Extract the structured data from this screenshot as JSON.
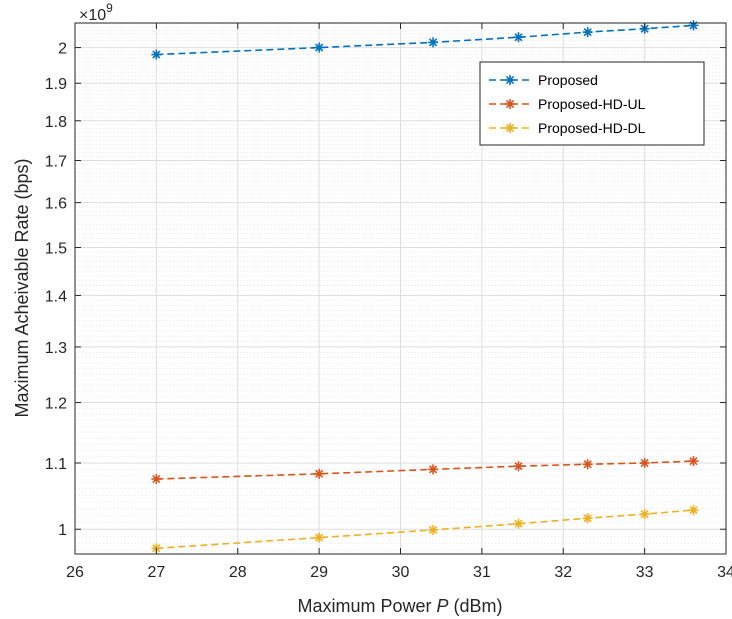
{
  "chart_data": {
    "type": "line",
    "xlabel_prefix": "Maximum Power ",
    "xlabel_var": "P",
    "xlabel_suffix": " (dBm)",
    "ylabel": "Maximum Acheivable Rate (bps)",
    "y_multiplier": "×10",
    "y_exponent": "9",
    "x_ticks": [
      26,
      27,
      28,
      29,
      30,
      31,
      32,
      33,
      34
    ],
    "y_ticks": [
      1,
      1.1,
      1.2,
      1.3,
      1.4,
      1.5,
      1.6,
      1.7,
      1.8,
      1.9,
      2
    ],
    "y_tick_labels": [
      "1",
      "1.1",
      "1.2",
      "1.3",
      "1.4",
      "1.5",
      "1.6",
      "1.7",
      "1.8",
      "1.9",
      "2"
    ],
    "y_scale": "log",
    "grid": true,
    "legend_position": "top-right",
    "series": [
      {
        "name": "Proposed",
        "color": "#0072BD",
        "marker": "asterisk",
        "line_style": "dashed",
        "x": [
          27,
          29,
          30.4,
          31.45,
          32.3,
          33,
          33.6
        ],
        "y": [
          1.98,
          2.0,
          2.015,
          2.03,
          2.045,
          2.055,
          2.065
        ]
      },
      {
        "name": "Proposed-HD-UL",
        "color": "#D95319",
        "marker": "asterisk",
        "line_style": "dashed",
        "x": [
          27,
          29,
          30.4,
          31.45,
          32.3,
          33,
          33.6
        ],
        "y": [
          1.075,
          1.083,
          1.09,
          1.095,
          1.098,
          1.1,
          1.103
        ]
      },
      {
        "name": "Proposed-HD-DL",
        "color": "#EDB120",
        "marker": "asterisk",
        "line_style": "dashed",
        "x": [
          27,
          29,
          30.4,
          31.45,
          32.3,
          33,
          33.6
        ],
        "y": [
          0.973,
          0.988,
          0.999,
          1.008,
          1.016,
          1.022,
          1.028
        ]
      }
    ]
  }
}
